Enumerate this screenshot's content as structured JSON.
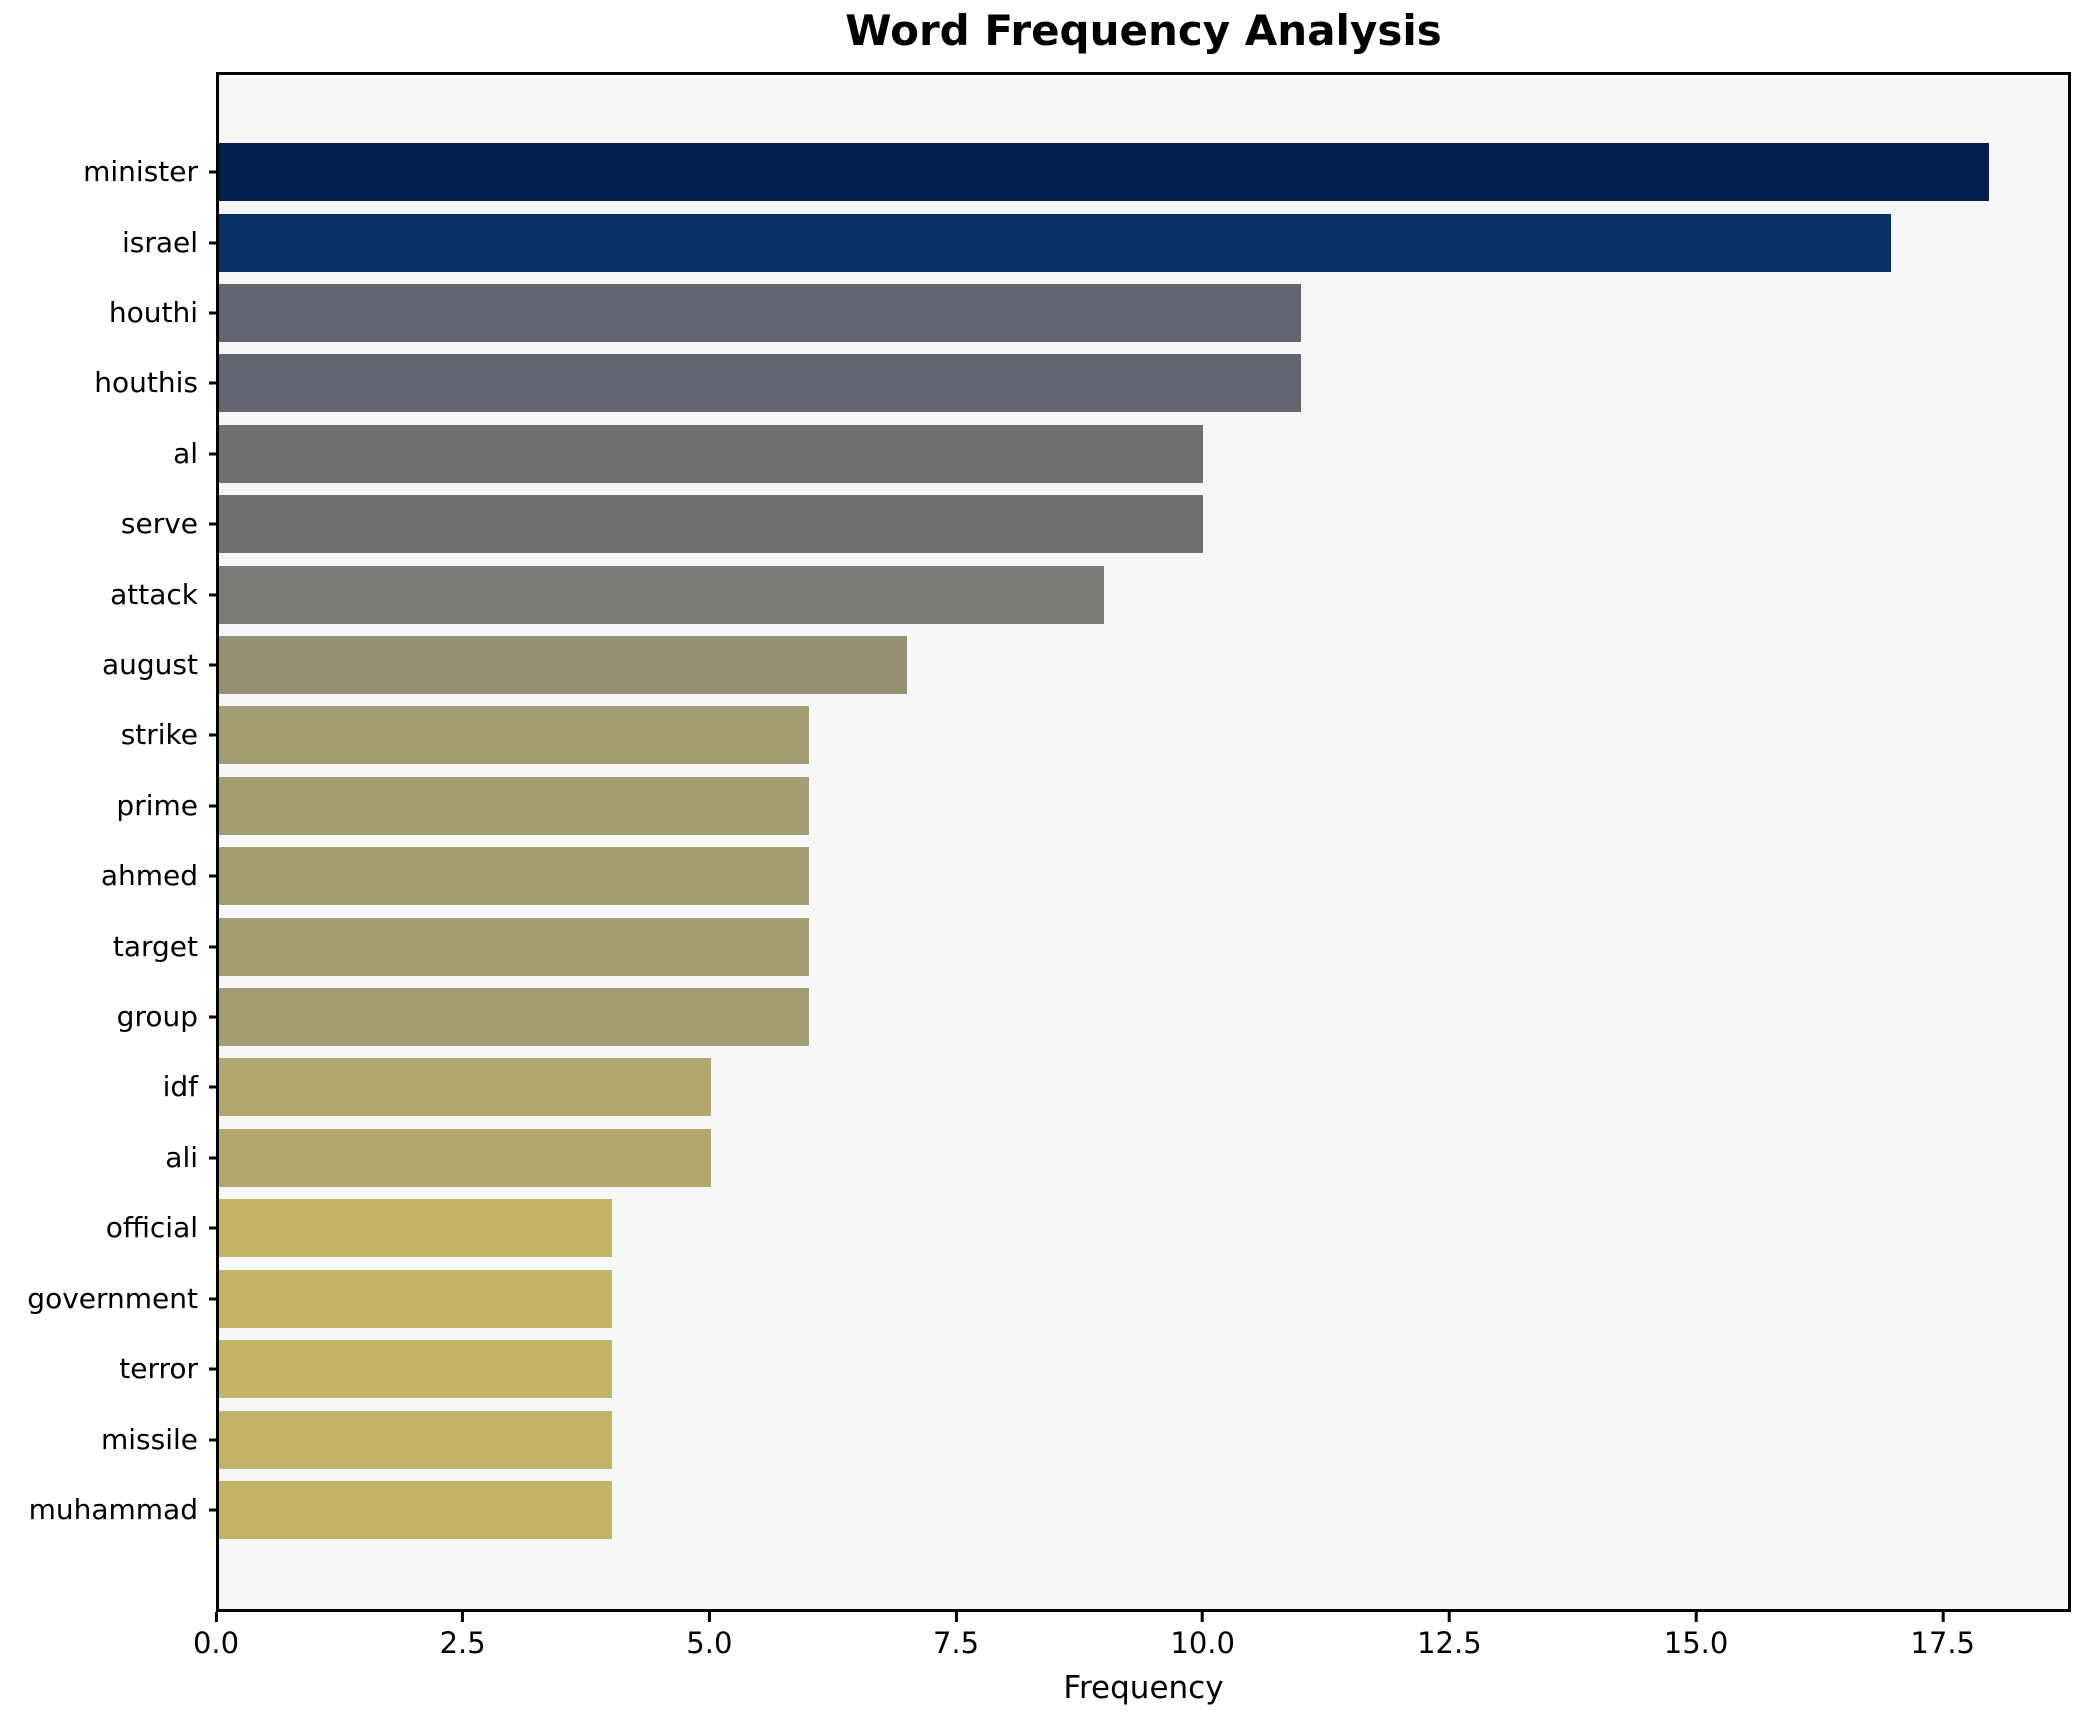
{
  "chart_data": {
    "type": "bar",
    "orientation": "horizontal",
    "title": "Word Frequency Analysis",
    "xlabel": "Frequency",
    "ylabel": "",
    "categories": [
      "minister",
      "israel",
      "houthi",
      "houthis",
      "al",
      "serve",
      "attack",
      "august",
      "strike",
      "prime",
      "ahmed",
      "target",
      "group",
      "idf",
      "ali",
      "official",
      "government",
      "terror",
      "missile",
      "muhammad"
    ],
    "values": [
      18,
      17,
      11,
      11,
      10,
      10,
      9,
      7,
      6,
      6,
      6,
      6,
      6,
      5,
      5,
      4,
      4,
      4,
      4,
      4
    ],
    "bar_colors": [
      "#02224d",
      "#0a3164",
      "#636570",
      "#636570",
      "#6e7072",
      "#6e7072",
      "#7b7b78",
      "#969174",
      "#a49d73",
      "#a49d73",
      "#a49d73",
      "#a49d73",
      "#a49d73",
      "#b1a86d",
      "#b1a86d",
      "#c2b466",
      "#c2b466",
      "#c2b466",
      "#c2b466",
      "#c2b466"
    ],
    "xlim": [
      0,
      18.8
    ],
    "xticks": [
      0,
      2.5,
      5,
      7.5,
      10,
      12.5,
      15,
      17.5
    ],
    "xtick_labels": [
      "0.0",
      "2.5",
      "5.0",
      "7.5",
      "10.0",
      "12.5",
      "15.0",
      "17.5"
    ],
    "grid": false,
    "legend": null,
    "plot_bg": "#f7f7f8",
    "fig_bg": "#ffffff",
    "axis_color": "#000000"
  }
}
